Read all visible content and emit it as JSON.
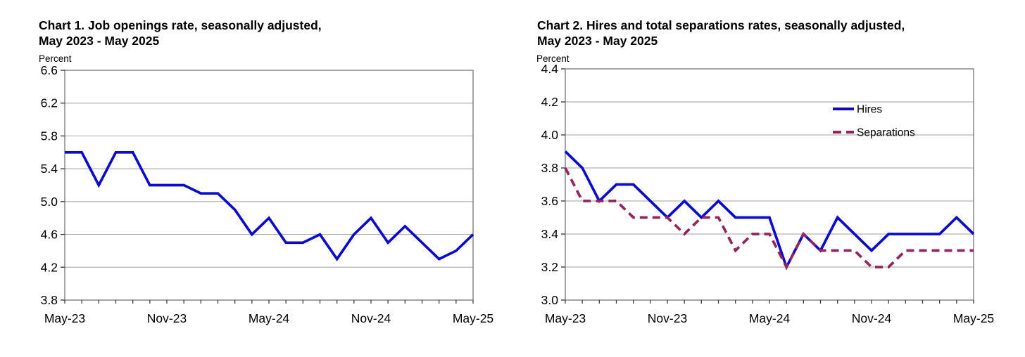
{
  "chart_data": [
    {
      "type": "line",
      "title_line1": "Chart 1. Job openings rate, seasonally adjusted,",
      "title_line2": "May 2023 - May 2025",
      "unit_label": "Percent",
      "x": [
        "May-23",
        "Jun-23",
        "Jul-23",
        "Aug-23",
        "Sep-23",
        "Oct-23",
        "Nov-23",
        "Dec-23",
        "Jan-24",
        "Feb-24",
        "Mar-24",
        "Apr-24",
        "May-24",
        "Jun-24",
        "Jul-24",
        "Aug-24",
        "Sep-24",
        "Oct-24",
        "Nov-24",
        "Dec-24",
        "Jan-25",
        "Feb-25",
        "Mar-25",
        "Apr-25",
        "May-25"
      ],
      "x_tick_label_indices": [
        0,
        6,
        12,
        18,
        24
      ],
      "ylim": [
        3.8,
        6.6
      ],
      "ytick_labels": [
        "3.8",
        "4.2",
        "4.6",
        "5.0",
        "5.4",
        "5.8",
        "6.2",
        "6.6"
      ],
      "grid": true,
      "legend": null,
      "series": [
        {
          "name": "Job openings",
          "color": "#0b0bce",
          "dashed": false,
          "values": [
            5.6,
            5.6,
            5.2,
            5.6,
            5.6,
            5.2,
            5.2,
            5.2,
            5.1,
            5.1,
            4.9,
            4.6,
            4.8,
            4.5,
            4.5,
            4.6,
            4.3,
            4.6,
            4.8,
            4.5,
            4.7,
            4.5,
            4.3,
            4.4,
            4.6
          ]
        }
      ]
    },
    {
      "type": "line",
      "title_line1": "Chart 2. Hires and total separations rates, seasonally adjusted,",
      "title_line2": "May 2023 - May 2025",
      "unit_label": "Percent",
      "x": [
        "May-23",
        "Jun-23",
        "Jul-23",
        "Aug-23",
        "Sep-23",
        "Oct-23",
        "Nov-23",
        "Dec-23",
        "Jan-24",
        "Feb-24",
        "Mar-24",
        "Apr-24",
        "May-24",
        "Jun-24",
        "Jul-24",
        "Aug-24",
        "Sep-24",
        "Oct-24",
        "Nov-24",
        "Dec-24",
        "Jan-25",
        "Feb-25",
        "Mar-25",
        "Apr-25",
        "May-25"
      ],
      "x_tick_label_indices": [
        0,
        6,
        12,
        18,
        24
      ],
      "ylim": [
        3.0,
        4.4
      ],
      "ytick_labels": [
        "3.0",
        "3.2",
        "3.4",
        "3.6",
        "3.8",
        "4.0",
        "4.2",
        "4.4"
      ],
      "grid": true,
      "legend": {
        "position": "upper-right"
      },
      "series": [
        {
          "name": "Hires",
          "color": "#0b0bce",
          "dashed": false,
          "values": [
            3.9,
            3.8,
            3.6,
            3.7,
            3.7,
            3.6,
            3.5,
            3.6,
            3.5,
            3.6,
            3.5,
            3.5,
            3.5,
            3.2,
            3.4,
            3.3,
            3.5,
            3.4,
            3.3,
            3.4,
            3.4,
            3.4,
            3.4,
            3.5,
            3.4
          ]
        },
        {
          "name": "Separations",
          "color": "#93255c",
          "dashed": true,
          "values": [
            3.8,
            3.6,
            3.6,
            3.6,
            3.5,
            3.5,
            3.5,
            3.4,
            3.5,
            3.5,
            3.3,
            3.4,
            3.4,
            3.2,
            3.4,
            3.3,
            3.3,
            3.3,
            3.2,
            3.2,
            3.3,
            3.3,
            3.3,
            3.3,
            3.3
          ]
        }
      ]
    }
  ],
  "style_colors": {
    "gridline": "#b2b2b2",
    "plot_border": "#7f7f7f",
    "tick": "#3f3f3f",
    "text": "#000000"
  }
}
